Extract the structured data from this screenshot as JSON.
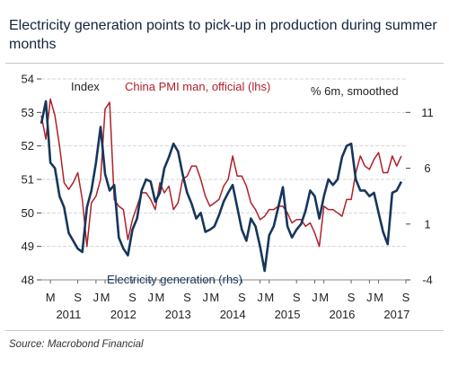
{
  "header": {
    "title": "Electricity generation points to pick-up in production during summer months"
  },
  "footer": {
    "source": "Source: Macrobond Financial"
  },
  "chart_data": {
    "type": "line",
    "title": "Electricity generation points to pick-up in production during summer months",
    "left_axis": {
      "label": "Index",
      "ylim": [
        48,
        54
      ],
      "ticks": [
        "48",
        "49",
        "50",
        "51",
        "52",
        "53",
        "54"
      ]
    },
    "right_axis": {
      "label": "% 6m, smoothed",
      "ylim": [
        -4,
        14
      ],
      "ticks": [
        "-4",
        "1",
        "6",
        "11"
      ]
    },
    "x_axis": {
      "start": "2011-01",
      "end": "2017-09",
      "month_labels": [
        {
          "text": "M",
          "date": "2011-03"
        },
        {
          "text": "S",
          "date": "2011-09"
        },
        {
          "text": "J",
          "date": "2012-01"
        },
        {
          "text": "M",
          "date": "2012-03"
        },
        {
          "text": "S",
          "date": "2012-09"
        },
        {
          "text": "J",
          "date": "2013-01"
        },
        {
          "text": "M",
          "date": "2013-03"
        },
        {
          "text": "S",
          "date": "2013-09"
        },
        {
          "text": "J",
          "date": "2014-01"
        },
        {
          "text": "M",
          "date": "2014-03"
        },
        {
          "text": "S",
          "date": "2014-09"
        },
        {
          "text": "J",
          "date": "2015-01"
        },
        {
          "text": "M",
          "date": "2015-03"
        },
        {
          "text": "S",
          "date": "2015-09"
        },
        {
          "text": "J",
          "date": "2016-01"
        },
        {
          "text": "M",
          "date": "2016-03"
        },
        {
          "text": "S",
          "date": "2016-09"
        },
        {
          "text": "J",
          "date": "2017-01"
        },
        {
          "text": "M",
          "date": "2017-03"
        },
        {
          "text": "S",
          "date": "2017-09"
        }
      ],
      "year_labels": [
        {
          "text": "2011",
          "date": "2011-07"
        },
        {
          "text": "2012",
          "date": "2012-07"
        },
        {
          "text": "2013",
          "date": "2013-07"
        },
        {
          "text": "2014",
          "date": "2014-07"
        },
        {
          "text": "2015",
          "date": "2015-07"
        },
        {
          "text": "2016",
          "date": "2016-07"
        },
        {
          "text": "2017",
          "date": "2017-07"
        }
      ]
    },
    "series": [
      {
        "name": "China PMI man, official (lhs)",
        "axis": "left",
        "color": "#b0202a",
        "points": [
          [
            "2011-01",
            52.9
          ],
          [
            "2011-02",
            52.2
          ],
          [
            "2011-03",
            53.4
          ],
          [
            "2011-04",
            52.9
          ],
          [
            "2011-05",
            52.0
          ],
          [
            "2011-06",
            50.9
          ],
          [
            "2011-07",
            50.7
          ],
          [
            "2011-08",
            50.9
          ],
          [
            "2011-09",
            51.2
          ],
          [
            "2011-10",
            50.4
          ],
          [
            "2011-11",
            49.0
          ],
          [
            "2011-12",
            50.3
          ],
          [
            "2012-01",
            50.5
          ],
          [
            "2012-02",
            51.0
          ],
          [
            "2012-03",
            53.1
          ],
          [
            "2012-04",
            53.3
          ],
          [
            "2012-05",
            50.4
          ],
          [
            "2012-06",
            50.2
          ],
          [
            "2012-07",
            50.1
          ],
          [
            "2012-08",
            49.2
          ],
          [
            "2012-09",
            49.8
          ],
          [
            "2012-10",
            50.2
          ],
          [
            "2012-11",
            50.6
          ],
          [
            "2012-12",
            50.6
          ],
          [
            "2013-01",
            50.4
          ],
          [
            "2013-02",
            50.1
          ],
          [
            "2013-03",
            50.9
          ],
          [
            "2013-04",
            50.6
          ],
          [
            "2013-05",
            50.8
          ],
          [
            "2013-06",
            50.1
          ],
          [
            "2013-07",
            50.3
          ],
          [
            "2013-08",
            51.0
          ],
          [
            "2013-09",
            51.1
          ],
          [
            "2013-10",
            51.4
          ],
          [
            "2013-11",
            51.4
          ],
          [
            "2013-12",
            51.0
          ],
          [
            "2014-01",
            50.5
          ],
          [
            "2014-02",
            50.2
          ],
          [
            "2014-03",
            50.3
          ],
          [
            "2014-04",
            50.4
          ],
          [
            "2014-05",
            50.8
          ],
          [
            "2014-06",
            51.0
          ],
          [
            "2014-07",
            51.7
          ],
          [
            "2014-08",
            51.1
          ],
          [
            "2014-09",
            51.1
          ],
          [
            "2014-10",
            50.8
          ],
          [
            "2014-11",
            50.3
          ],
          [
            "2014-12",
            50.1
          ],
          [
            "2015-01",
            49.8
          ],
          [
            "2015-02",
            49.9
          ],
          [
            "2015-03",
            50.1
          ],
          [
            "2015-04",
            50.1
          ],
          [
            "2015-05",
            50.2
          ],
          [
            "2015-06",
            50.2
          ],
          [
            "2015-07",
            50.0
          ],
          [
            "2015-08",
            49.7
          ],
          [
            "2015-09",
            49.8
          ],
          [
            "2015-10",
            49.8
          ],
          [
            "2015-11",
            49.6
          ],
          [
            "2015-12",
            49.7
          ],
          [
            "2016-01",
            49.4
          ],
          [
            "2016-02",
            49.0
          ],
          [
            "2016-03",
            50.2
          ],
          [
            "2016-04",
            50.1
          ],
          [
            "2016-05",
            50.1
          ],
          [
            "2016-06",
            50.0
          ],
          [
            "2016-07",
            49.9
          ],
          [
            "2016-08",
            50.4
          ],
          [
            "2016-09",
            50.4
          ],
          [
            "2016-10",
            51.2
          ],
          [
            "2016-11",
            51.7
          ],
          [
            "2016-12",
            51.4
          ],
          [
            "2017-01",
            51.3
          ],
          [
            "2017-02",
            51.6
          ],
          [
            "2017-03",
            51.8
          ],
          [
            "2017-04",
            51.2
          ],
          [
            "2017-05",
            51.2
          ],
          [
            "2017-06",
            51.7
          ],
          [
            "2017-07",
            51.4
          ],
          [
            "2017-08",
            51.7
          ]
        ]
      },
      {
        "name": "Electricity generation (rhs)",
        "axis": "right",
        "color": "#16365c",
        "points": [
          [
            "2011-01",
            10.0
          ],
          [
            "2011-02",
            12.0
          ],
          [
            "2011-03",
            6.5
          ],
          [
            "2011-04",
            6.0
          ],
          [
            "2011-05",
            3.5
          ],
          [
            "2011-06",
            2.5
          ],
          [
            "2011-07",
            0.2
          ],
          [
            "2011-08",
            -0.5
          ],
          [
            "2011-09",
            -1.2
          ],
          [
            "2011-10",
            -1.5
          ],
          [
            "2011-11",
            2.5
          ],
          [
            "2011-12",
            4.0
          ],
          [
            "2012-01",
            6.5
          ],
          [
            "2012-02",
            9.7
          ],
          [
            "2012-03",
            5.5
          ],
          [
            "2012-04",
            4.0
          ],
          [
            "2012-05",
            4.5
          ],
          [
            "2012-06",
            -0.2
          ],
          [
            "2012-07",
            -1.2
          ],
          [
            "2012-08",
            -1.8
          ],
          [
            "2012-09",
            0.5
          ],
          [
            "2012-10",
            1.5
          ],
          [
            "2012-11",
            4.0
          ],
          [
            "2012-12",
            5.0
          ],
          [
            "2013-01",
            4.8
          ],
          [
            "2013-02",
            3.0
          ],
          [
            "2013-03",
            3.8
          ],
          [
            "2013-04",
            6.0
          ],
          [
            "2013-05",
            7.0
          ],
          [
            "2013-06",
            8.2
          ],
          [
            "2013-07",
            7.5
          ],
          [
            "2013-08",
            5.5
          ],
          [
            "2013-09",
            3.8
          ],
          [
            "2013-10",
            2.8
          ],
          [
            "2013-11",
            1.5
          ],
          [
            "2013-12",
            2.0
          ],
          [
            "2014-01",
            0.3
          ],
          [
            "2014-02",
            0.5
          ],
          [
            "2014-03",
            0.8
          ],
          [
            "2014-04",
            1.8
          ],
          [
            "2014-05",
            3.0
          ],
          [
            "2014-06",
            3.8
          ],
          [
            "2014-07",
            4.5
          ],
          [
            "2014-08",
            2.5
          ],
          [
            "2014-09",
            0.5
          ],
          [
            "2014-10",
            -0.5
          ],
          [
            "2014-11",
            1.5
          ],
          [
            "2014-12",
            0.8
          ],
          [
            "2015-01",
            -1.0
          ],
          [
            "2015-02",
            -3.2
          ],
          [
            "2015-03",
            0.0
          ],
          [
            "2015-04",
            0.8
          ],
          [
            "2015-05",
            2.5
          ],
          [
            "2015-06",
            4.3
          ],
          [
            "2015-07",
            0.8
          ],
          [
            "2015-08",
            -0.2
          ],
          [
            "2015-09",
            0.5
          ],
          [
            "2015-10",
            1.0
          ],
          [
            "2015-11",
            2.2
          ],
          [
            "2015-12",
            4.0
          ],
          [
            "2016-01",
            3.5
          ],
          [
            "2016-02",
            1.5
          ],
          [
            "2016-03",
            3.5
          ],
          [
            "2016-04",
            5.0
          ],
          [
            "2016-05",
            4.5
          ],
          [
            "2016-06",
            5.0
          ],
          [
            "2016-07",
            7.0
          ],
          [
            "2016-08",
            8.0
          ],
          [
            "2016-09",
            8.2
          ],
          [
            "2016-10",
            5.0
          ],
          [
            "2016-11",
            4.0
          ],
          [
            "2016-12",
            4.0
          ],
          [
            "2017-01",
            3.5
          ],
          [
            "2017-02",
            3.8
          ],
          [
            "2017-03",
            2.0
          ],
          [
            "2017-04",
            0.3
          ],
          [
            "2017-05",
            -0.8
          ],
          [
            "2017-06",
            3.8
          ],
          [
            "2017-07",
            4.0
          ],
          [
            "2017-08",
            4.8
          ]
        ]
      }
    ],
    "annotations": [
      {
        "text": "Index",
        "color": "#222222"
      },
      {
        "text": "China PMI man, official (lhs)",
        "color": "#b0202a"
      },
      {
        "text": "% 6m, smoothed",
        "color": "#222222"
      },
      {
        "text": "Electricity generation (rhs)",
        "color": "#16365c"
      }
    ],
    "grid": true
  }
}
